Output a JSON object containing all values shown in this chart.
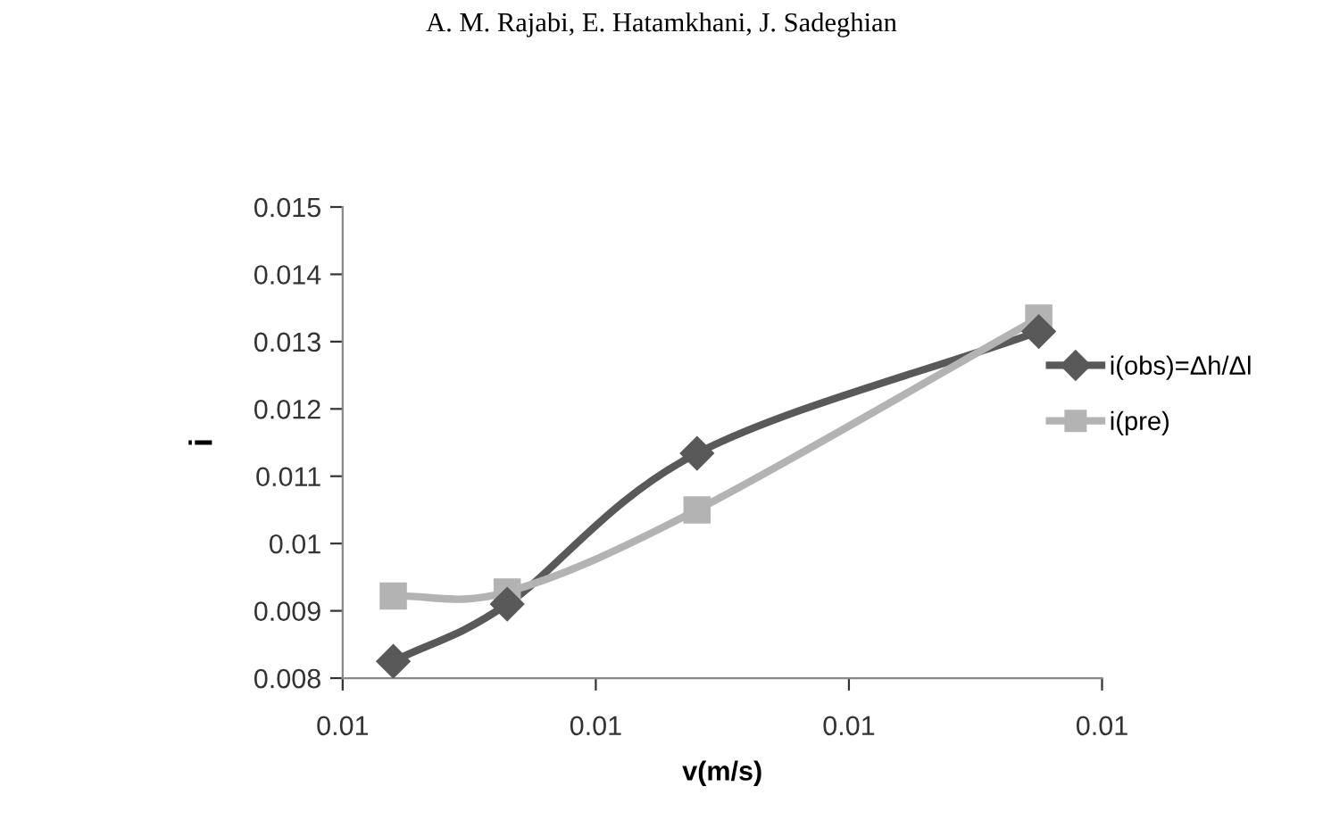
{
  "chart_data": {
    "type": "line",
    "xlabel": "v(m/s)",
    "ylabel": "i",
    "annotations": [
      "A. M. Rajabi, E. Hatamkhani, J. Sadeghian"
    ],
    "x": [
      0.0064,
      0.0073,
      0.0088,
      0.0115
    ],
    "series": [
      {
        "name": "i(obs)=Δh/Δl",
        "color": "#595959",
        "marker": "diamond",
        "values": [
          0.00825,
          0.0091,
          0.01134,
          0.01315
        ]
      },
      {
        "name": "i(pre)",
        "color": "#b3b3b3",
        "marker": "square",
        "values": [
          0.00922,
          0.00928,
          0.0105,
          0.01335
        ]
      }
    ],
    "xlim": [
      0.006,
      0.012
    ],
    "xticks": [
      {
        "value": 0.006,
        "label": "0.01"
      },
      {
        "value": 0.008,
        "label": "0.01"
      },
      {
        "value": 0.01,
        "label": "0.01"
      },
      {
        "value": 0.012,
        "label": "0.01"
      }
    ],
    "ylim": [
      0.008,
      0.015
    ],
    "yticks": [
      0.008,
      0.009,
      0.01,
      0.011,
      0.012,
      0.013,
      0.014,
      0.015
    ],
    "grid": false,
    "legend": "right",
    "line_style": "solid"
  }
}
